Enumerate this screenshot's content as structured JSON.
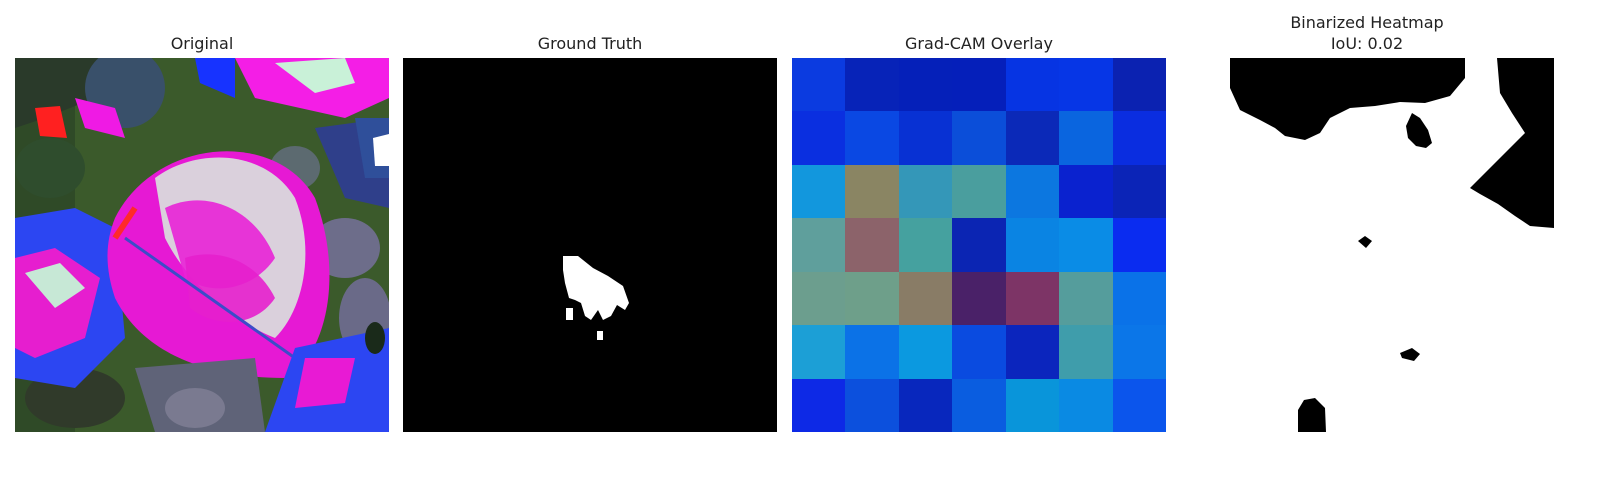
{
  "panels": [
    {
      "title": "Original"
    },
    {
      "title": "Ground Truth"
    },
    {
      "title": "Grad-CAM Overlay"
    },
    {
      "title": "Binarized Heatmap",
      "subtitle": "IoU: 0.02"
    }
  ],
  "gradcam_cells": [
    [
      "#0b3be0",
      "#0723b8",
      "#0520b9",
      "#051fba",
      "#0634e3",
      "#0636e6",
      "#0b22b1"
    ],
    [
      "#0a2fe0",
      "#0a48e3",
      "#0831d3",
      "#0b4ed9",
      "#0b29b8",
      "#0a65df",
      "#0a2de0"
    ],
    [
      "#1297dd",
      "#8a8563",
      "#3497b8",
      "#4a9e9e",
      "#0c77e0",
      "#0a22cf",
      "#0b24b7"
    ],
    [
      "#5f9f9c",
      "#8c636a",
      "#45a19f",
      "#0b25b3",
      "#0a84e3",
      "#0a8ce6",
      "#0a2cf0"
    ],
    [
      "#6c9e8e",
      "#6e9f8a",
      "#897c66",
      "#4a2168",
      "#7d3466",
      "#559d9c",
      "#0a72e8"
    ],
    [
      "#1c9fd6",
      "#0b72e7",
      "#0b99e0",
      "#0a4be0",
      "#0b25bd",
      "#3f9dab",
      "#0b76e8"
    ],
    [
      "#0d29e6",
      "#0c50dd",
      "#0827bd",
      "#0a5de0",
      "#0995da",
      "#0a8ae3",
      "#0b55ec"
    ]
  ]
}
